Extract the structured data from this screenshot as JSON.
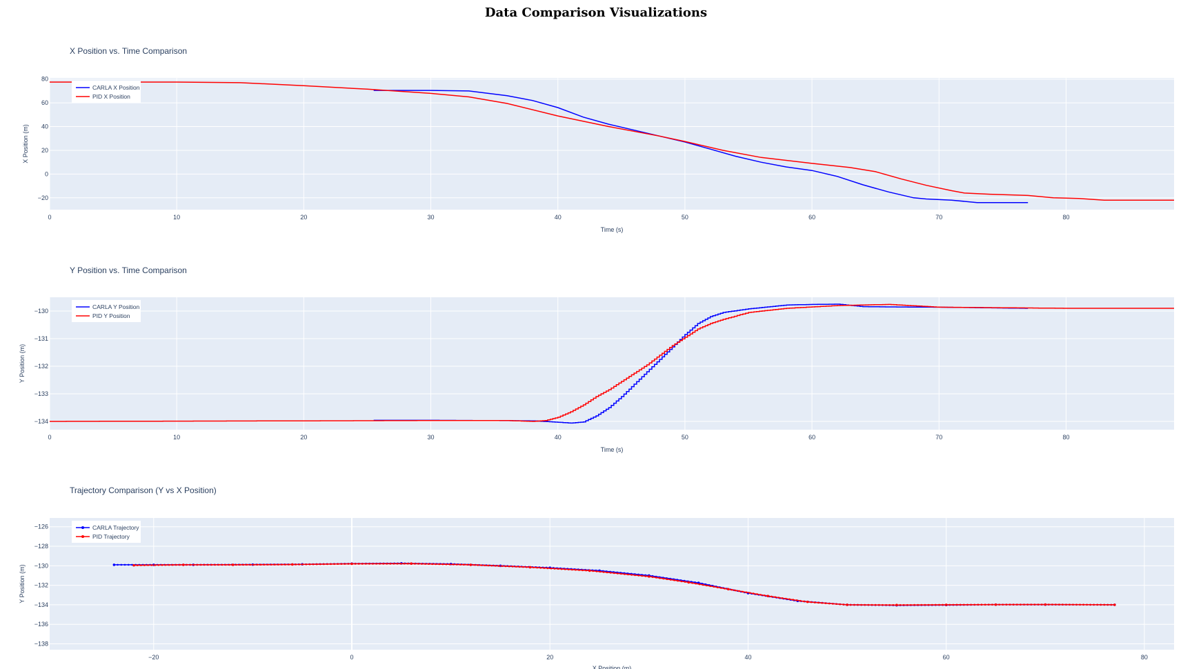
{
  "page": {
    "title": "Data Comparison Visualizations"
  },
  "colors": {
    "carla": "#0000ff",
    "pid": "#ff0000",
    "plot_bg": "#e5ecf6",
    "grid": "#ffffff",
    "text": "#2a3f5f"
  },
  "chart_data": [
    {
      "type": "line",
      "title": "X Position vs. Time Comparison",
      "xlabel": "Time (s)",
      "ylabel": "X Position (m)",
      "xlim": [
        0,
        88.5
      ],
      "ylim": [
        -30,
        81
      ],
      "xticks": [
        0,
        10,
        20,
        30,
        40,
        50,
        60,
        70,
        80
      ],
      "yticks": [
        -20,
        0,
        20,
        40,
        60,
        80
      ],
      "grid": true,
      "legend_position": "top-left",
      "series": [
        {
          "name": "CARLA X Position",
          "color": "#0000ff",
          "x": [
            25.5,
            30,
            33,
            36,
            38,
            40,
            42,
            44,
            46,
            48,
            50,
            52,
            54,
            56,
            58,
            60,
            62,
            64,
            66,
            68,
            69,
            71,
            73,
            75,
            77
          ],
          "y": [
            70.5,
            70.5,
            70,
            66,
            62,
            56,
            48,
            42,
            37,
            32,
            27,
            21,
            15,
            10,
            6,
            3,
            -2,
            -9,
            -15,
            -20,
            -21,
            -22,
            -24,
            -24,
            -24
          ]
        },
        {
          "name": "PID X Position",
          "color": "#ff0000",
          "x": [
            0,
            5,
            10,
            15,
            20,
            25,
            30,
            33,
            36,
            40,
            44,
            48,
            50,
            53,
            56,
            60,
            63,
            65,
            67,
            69,
            71,
            72,
            74,
            77,
            79,
            81,
            83,
            88.5
          ],
          "y": [
            77.5,
            77.5,
            77.5,
            77,
            74.5,
            71.5,
            68,
            65,
            59.5,
            49,
            40,
            32,
            27.5,
            20,
            14,
            9,
            5.5,
            2,
            -4,
            -9.5,
            -14,
            -16,
            -17,
            -18,
            -20,
            -20.5,
            -22,
            -22
          ]
        }
      ]
    },
    {
      "type": "line",
      "title": "Y Position vs. Time Comparison",
      "xlabel": "Time (s)",
      "ylabel": "Y Position (m)",
      "xlim": [
        0,
        88.5
      ],
      "ylim": [
        -134.3,
        -129.5
      ],
      "xticks": [
        0,
        10,
        20,
        30,
        40,
        50,
        60,
        70,
        80
      ],
      "yticks": [
        -134,
        -133,
        -132,
        -131,
        -130
      ],
      "grid": true,
      "legend_position": "top-left",
      "series": [
        {
          "name": "CARLA Y Position",
          "color": "#0000ff",
          "x": [
            25.5,
            30,
            35,
            38,
            40,
            41,
            42,
            43,
            44,
            45,
            46,
            47,
            48,
            49,
            50,
            51,
            52,
            53,
            55,
            58,
            60,
            62,
            64,
            66,
            70,
            77
          ],
          "y": [
            -133.96,
            -133.96,
            -133.97,
            -133.98,
            -134.03,
            -134.06,
            -134.02,
            -133.8,
            -133.5,
            -133.1,
            -132.65,
            -132.2,
            -131.75,
            -131.3,
            -130.85,
            -130.45,
            -130.2,
            -130.05,
            -129.92,
            -129.78,
            -129.76,
            -129.75,
            -129.84,
            -129.85,
            -129.86,
            -129.9
          ]
        },
        {
          "name": "PID Y Position",
          "color": "#ff0000",
          "x": [
            0,
            20,
            30,
            36,
            38,
            39,
            40,
            41,
            42,
            43,
            44,
            45,
            46,
            47,
            48,
            49,
            50,
            51,
            52,
            53,
            55,
            58,
            62,
            66,
            70,
            80,
            88.5
          ],
          "y": [
            -134,
            -133.98,
            -133.97,
            -133.97,
            -134.0,
            -133.97,
            -133.85,
            -133.65,
            -133.4,
            -133.1,
            -132.85,
            -132.55,
            -132.25,
            -131.95,
            -131.6,
            -131.25,
            -130.95,
            -130.65,
            -130.45,
            -130.3,
            -130.05,
            -129.9,
            -129.8,
            -129.76,
            -129.86,
            -129.9,
            -129.9
          ]
        }
      ]
    },
    {
      "type": "scatter",
      "title": "Trajectory Comparison (Y vs X Position)",
      "xlabel": "X Position (m)",
      "ylabel": "Y Position (m)",
      "xlim": [
        -30.5,
        83
      ],
      "ylim": [
        -138.6,
        -125.1
      ],
      "xticks": [
        -20,
        0,
        20,
        40,
        60,
        80
      ],
      "yticks": [
        -138,
        -136,
        -134,
        -132,
        -130,
        -128,
        -126
      ],
      "grid": true,
      "legend_position": "top-left",
      "series": [
        {
          "name": "CARLA Trajectory",
          "color": "#0000ff",
          "mode": "lines+markers",
          "x": [
            -24,
            -20,
            -16,
            -10,
            -5,
            0,
            5,
            10,
            15,
            20,
            25,
            30,
            35,
            40,
            45,
            50,
            55,
            60,
            65,
            70,
            77
          ],
          "y": [
            -129.9,
            -129.9,
            -129.9,
            -129.88,
            -129.85,
            -129.78,
            -129.75,
            -129.82,
            -130.0,
            -130.2,
            -130.5,
            -131.0,
            -131.75,
            -132.8,
            -133.6,
            -134.0,
            -134.05,
            -134.02,
            -133.98,
            -133.98,
            -134.0
          ]
        },
        {
          "name": "PID Trajectory",
          "color": "#ff0000",
          "mode": "lines+markers",
          "x": [
            -22,
            -17,
            -12,
            -6,
            0,
            6,
            12,
            18,
            24,
            30,
            34,
            38,
            42,
            46,
            50,
            55,
            60,
            65,
            70,
            77
          ],
          "y": [
            -129.95,
            -129.9,
            -129.9,
            -129.87,
            -129.8,
            -129.78,
            -129.9,
            -130.15,
            -130.5,
            -131.1,
            -131.7,
            -132.4,
            -133.1,
            -133.7,
            -134.0,
            -134.02,
            -134.0,
            -133.98,
            -133.97,
            -134.0
          ]
        }
      ]
    }
  ]
}
